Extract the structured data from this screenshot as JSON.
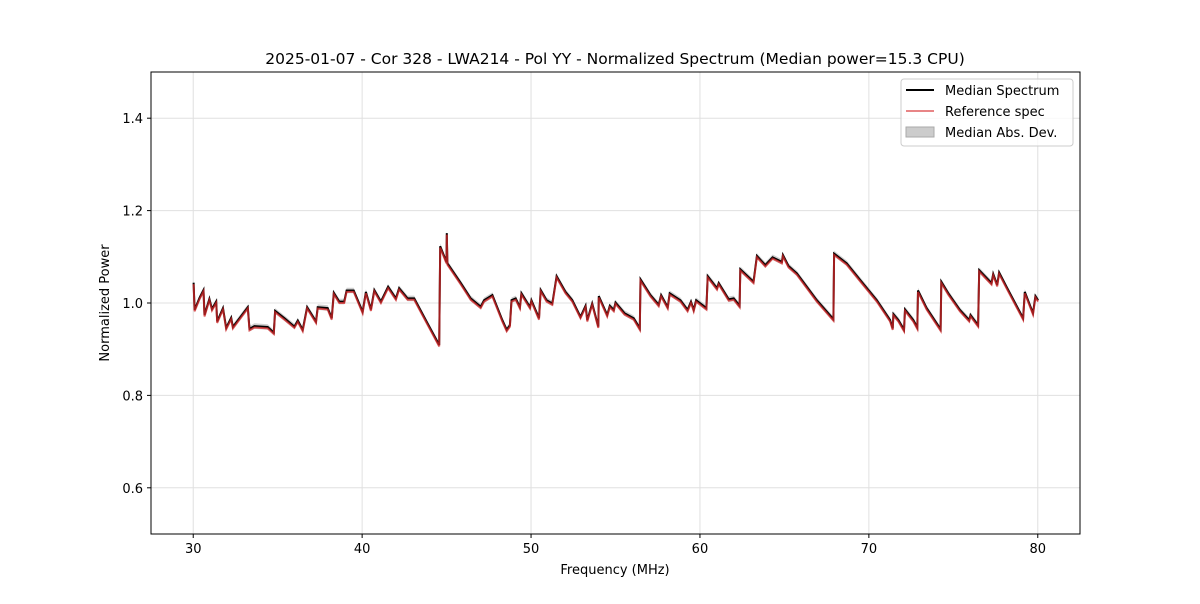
{
  "chart_data": {
    "type": "line",
    "title": "2025-01-07 - Cor 328 - LWA214 - Pol YY - Normalized Spectrum (Median power=15.3 CPU)",
    "xlabel": "Frequency (MHz)",
    "ylabel": "Normalized Power",
    "xlim": [
      27.5,
      82.5
    ],
    "ylim": [
      0.5,
      1.5
    ],
    "xticks": [
      30,
      40,
      50,
      60,
      70,
      80
    ],
    "xtick_labels": [
      "30",
      "40",
      "50",
      "60",
      "70",
      "80"
    ],
    "yticks": [
      0.6,
      0.8,
      1.0,
      1.2,
      1.4
    ],
    "ytick_labels": [
      "0.6",
      "0.8",
      "1.0",
      "1.2",
      "1.4"
    ],
    "grid": true,
    "legend_position": "top-right",
    "legend": [
      "Median Spectrum",
      "Reference spec",
      "Median Abs. Dev."
    ],
    "colors": {
      "median": "#000000",
      "reference": "#d62728",
      "mad": "#bbbbbb"
    },
    "mad_halfwidth": 0.006,
    "reference_offset_from_median": -0.003,
    "x": [
      30.02,
      30.08,
      30.37,
      30.61,
      30.67,
      30.96,
      31.11,
      31.36,
      31.42,
      31.76,
      31.95,
      32.25,
      32.35,
      33.23,
      33.33,
      33.62,
      34.41,
      34.77,
      34.85,
      35.4,
      35.99,
      36.19,
      36.48,
      36.74,
      37.27,
      37.37,
      37.96,
      38.2,
      38.32,
      38.65,
      38.94,
      39.08,
      39.5,
      40.03,
      40.22,
      40.52,
      40.72,
      41.11,
      41.54,
      42.0,
      42.19,
      42.69,
      43.08,
      43.87,
      44.56,
      44.62,
      44.99,
      45.01,
      45.05,
      45.84,
      46.43,
      47.02,
      47.22,
      47.71,
      48.3,
      48.56,
      48.75,
      48.84,
      49.09,
      49.34,
      49.43,
      49.94,
      50.02,
      50.47,
      50.57,
      50.92,
      51.26,
      51.51,
      52.04,
      52.44,
      52.93,
      53.23,
      53.33,
      53.62,
      53.98,
      54.01,
      54.51,
      54.66,
      54.9,
      55.0,
      55.53,
      56.08,
      56.44,
      56.48,
      57.07,
      57.56,
      57.7,
      58.09,
      58.21,
      58.84,
      59.27,
      59.47,
      59.63,
      59.77,
      60.38,
      60.46,
      61.01,
      61.11,
      61.7,
      62.0,
      62.35,
      62.39,
      63.17,
      63.37,
      63.87,
      64.3,
      64.85,
      64.91,
      65.24,
      65.74,
      66.92,
      67.9,
      67.94,
      68.69,
      69.48,
      70.47,
      71.26,
      71.41,
      71.45,
      71.75,
      72.08,
      72.14,
      72.63,
      72.87,
      72.91,
      73.42,
      74.25,
      74.29,
      74.7,
      75.39,
      75.94,
      76.02,
      76.47,
      76.53,
      77.26,
      77.36,
      77.6,
      77.71,
      78.15,
      79.13,
      79.23,
      79.72,
      79.86,
      80.02
    ],
    "series": [
      {
        "name": "Median Spectrum",
        "values": [
          1.044,
          0.985,
          1.011,
          1.028,
          0.974,
          1.009,
          0.987,
          1.003,
          0.96,
          0.989,
          0.946,
          0.968,
          0.948,
          0.991,
          0.944,
          0.95,
          0.948,
          0.936,
          0.983,
          0.967,
          0.949,
          0.962,
          0.942,
          0.991,
          0.96,
          0.991,
          0.989,
          0.967,
          1.022,
          1.003,
          1.003,
          1.027,
          1.027,
          0.981,
          1.024,
          0.986,
          1.028,
          1.003,
          1.035,
          1.01,
          1.032,
          1.01,
          1.01,
          0.956,
          0.909,
          1.123,
          1.089,
          1.151,
          1.086,
          1.043,
          1.01,
          0.992,
          1.006,
          1.017,
          0.963,
          0.942,
          0.952,
          1.006,
          1.01,
          0.991,
          1.021,
          0.991,
          1.006,
          0.967,
          1.028,
          1.006,
          0.999,
          1.058,
          1.024,
          1.006,
          0.97,
          0.994,
          0.963,
          0.999,
          0.949,
          1.015,
          0.974,
          0.994,
          0.985,
          1.001,
          0.978,
          0.967,
          0.945,
          1.051,
          1.017,
          0.996,
          1.017,
          0.991,
          1.021,
          1.006,
          0.985,
          1.003,
          0.985,
          1.006,
          0.989,
          1.058,
          1.032,
          1.043,
          1.008,
          1.01,
          0.994,
          1.073,
          1.046,
          1.102,
          1.082,
          1.099,
          1.089,
          1.104,
          1.08,
          1.064,
          1.006,
          0.965,
          1.107,
          1.086,
          1.05,
          1.006,
          0.963,
          0.945,
          0.976,
          0.963,
          0.942,
          0.986,
          0.963,
          0.947,
          1.027,
          0.989,
          0.943,
          1.046,
          1.021,
          0.985,
          0.963,
          0.974,
          0.952,
          1.071,
          1.043,
          1.063,
          1.039,
          1.066,
          1.035,
          0.967,
          1.024,
          0.978,
          1.015,
          1.006
        ]
      }
    ]
  }
}
